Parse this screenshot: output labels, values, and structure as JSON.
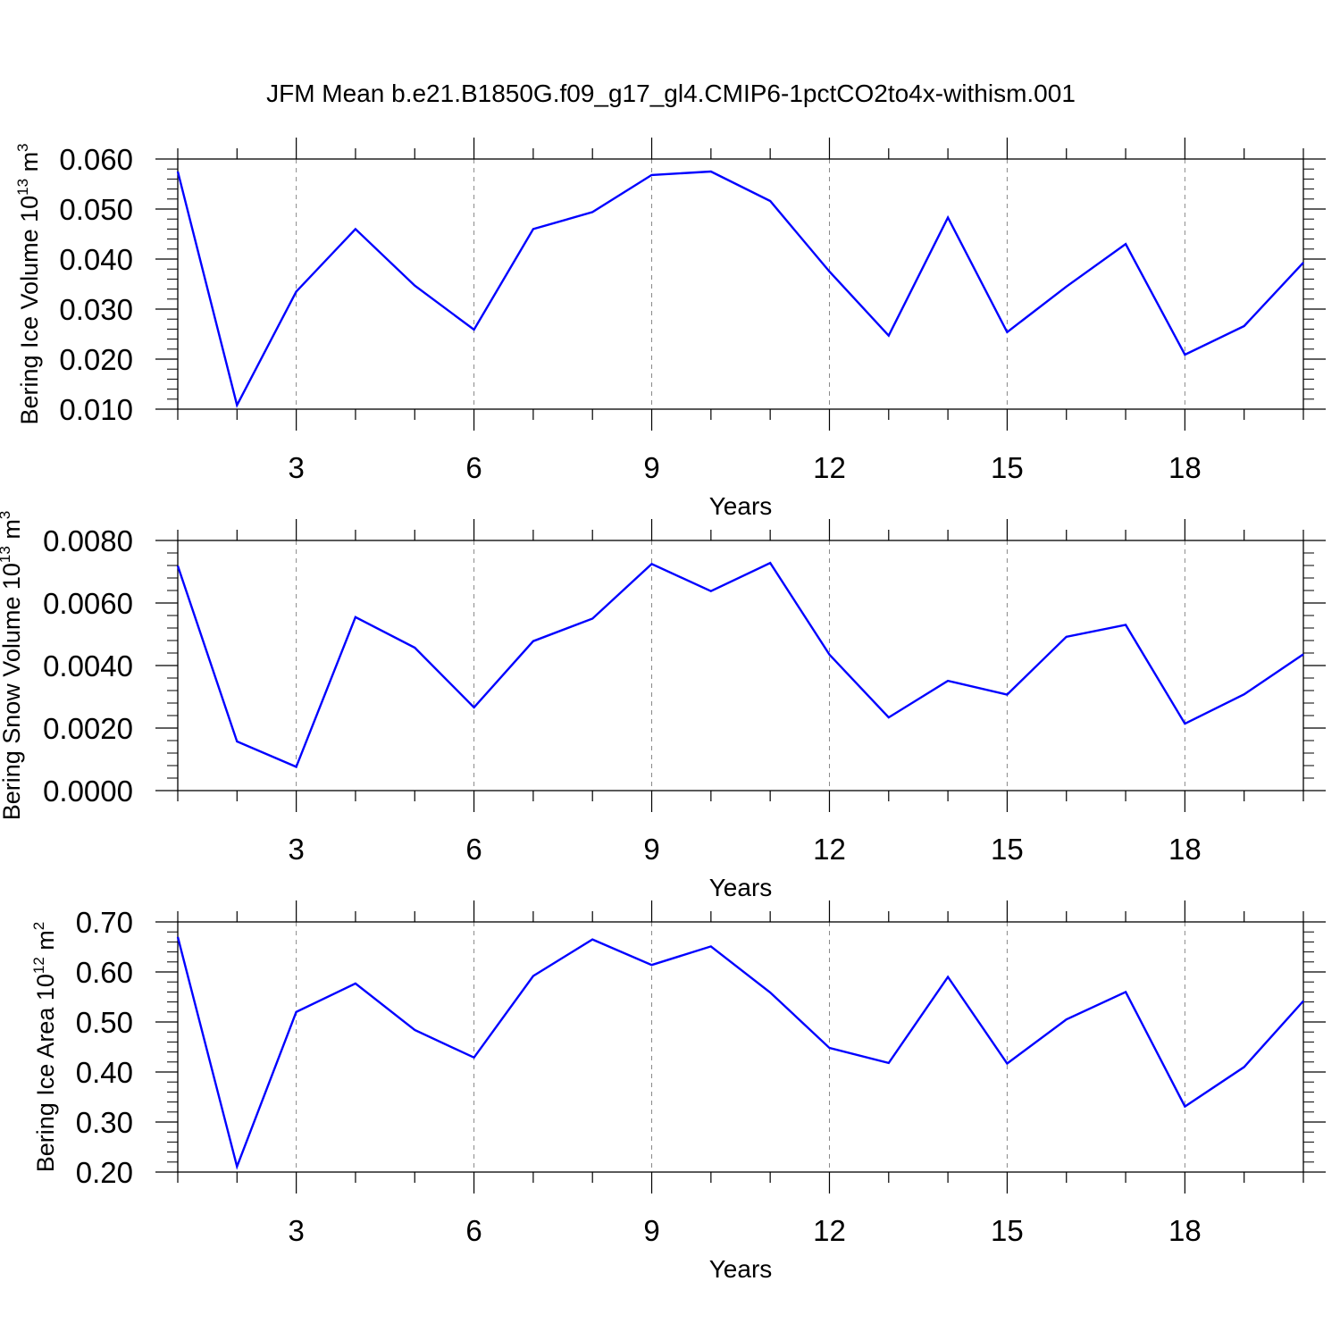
{
  "title": "JFM Mean b.e21.B1850G.f09_g17_gl4.CMIP6-1pctCO2to4x-withism.001",
  "chart_data": [
    {
      "type": "line",
      "ylabel": "Bering Ice Volume",
      "ylabel_unit_base": "10",
      "ylabel_unit_exp": "13",
      "ylabel_unit_tail": " m",
      "ylabel_unit_tail_exp": "3",
      "xlabel": "Years",
      "xlim": [
        1,
        20
      ],
      "ylim": [
        0.01,
        0.06
      ],
      "x_tick_labels": [
        "3",
        "6",
        "9",
        "12",
        "15",
        "18"
      ],
      "x_major_ticks": [
        3,
        6,
        9,
        12,
        15,
        18
      ],
      "y_tick_labels": [
        "0.010",
        "0.020",
        "0.030",
        "0.040",
        "0.050",
        "0.060"
      ],
      "y_major_ticks": [
        0.01,
        0.02,
        0.03,
        0.04,
        0.05,
        0.06
      ],
      "y_minor_step": 0.002,
      "grid": "vertical dashed at major x ticks",
      "line_color": "#0000ff",
      "x": [
        1,
        2,
        3,
        4,
        5,
        6,
        7,
        8,
        9,
        10,
        11,
        12,
        13,
        14,
        15,
        16,
        17,
        18,
        19,
        20
      ],
      "values": [
        0.0575,
        0.0108,
        0.0335,
        0.046,
        0.0347,
        0.0259,
        0.046,
        0.0494,
        0.0568,
        0.0575,
        0.0516,
        0.0375,
        0.0247,
        0.0483,
        0.0254,
        0.0345,
        0.043,
        0.0209,
        0.0266,
        0.0393
      ]
    },
    {
      "type": "line",
      "ylabel": "Bering Snow Volume",
      "ylabel_unit_base": "10",
      "ylabel_unit_exp": "13",
      "ylabel_unit_tail": " m",
      "ylabel_unit_tail_exp": "3",
      "xlabel": "Years",
      "xlim": [
        1,
        20
      ],
      "ylim": [
        0.0,
        0.008
      ],
      "x_tick_labels": [
        "3",
        "6",
        "9",
        "12",
        "15",
        "18"
      ],
      "x_major_ticks": [
        3,
        6,
        9,
        12,
        15,
        18
      ],
      "y_tick_labels": [
        "0.0000",
        "0.0020",
        "0.0040",
        "0.0060",
        "0.0080"
      ],
      "y_major_ticks": [
        0.0,
        0.002,
        0.004,
        0.006,
        0.008
      ],
      "y_minor_step": 0.0004,
      "grid": "vertical dashed at major x ticks",
      "line_color": "#0000ff",
      "x": [
        1,
        2,
        3,
        4,
        5,
        6,
        7,
        8,
        9,
        10,
        11,
        12,
        13,
        14,
        15,
        16,
        17,
        18,
        19,
        20
      ],
      "values": [
        0.00719,
        0.00157,
        0.00076,
        0.00555,
        0.00457,
        0.00266,
        0.00478,
        0.0055,
        0.00725,
        0.00638,
        0.00728,
        0.00435,
        0.00234,
        0.00351,
        0.00307,
        0.00492,
        0.0053,
        0.00214,
        0.00308,
        0.00436
      ]
    },
    {
      "type": "line",
      "ylabel": "Bering Ice Area",
      "ylabel_unit_base": "10",
      "ylabel_unit_exp": "12",
      "ylabel_unit_tail": " m",
      "ylabel_unit_tail_exp": "2",
      "xlabel": "Years",
      "xlim": [
        1,
        20
      ],
      "ylim": [
        0.2,
        0.7
      ],
      "x_tick_labels": [
        "3",
        "6",
        "9",
        "12",
        "15",
        "18"
      ],
      "x_major_ticks": [
        3,
        6,
        9,
        12,
        15,
        18
      ],
      "y_tick_labels": [
        "0.20",
        "0.30",
        "0.40",
        "0.50",
        "0.60",
        "0.70"
      ],
      "y_major_ticks": [
        0.2,
        0.3,
        0.4,
        0.5,
        0.6,
        0.7
      ],
      "y_minor_step": 0.02,
      "grid": "vertical dashed at major x ticks",
      "line_color": "#0000ff",
      "x": [
        1,
        2,
        3,
        4,
        5,
        6,
        7,
        8,
        9,
        10,
        11,
        12,
        13,
        14,
        15,
        16,
        17,
        18,
        19,
        20
      ],
      "values": [
        0.67,
        0.211,
        0.52,
        0.577,
        0.484,
        0.429,
        0.592,
        0.665,
        0.614,
        0.651,
        0.559,
        0.448,
        0.418,
        0.59,
        0.417,
        0.505,
        0.56,
        0.331,
        0.41,
        0.542
      ]
    }
  ]
}
